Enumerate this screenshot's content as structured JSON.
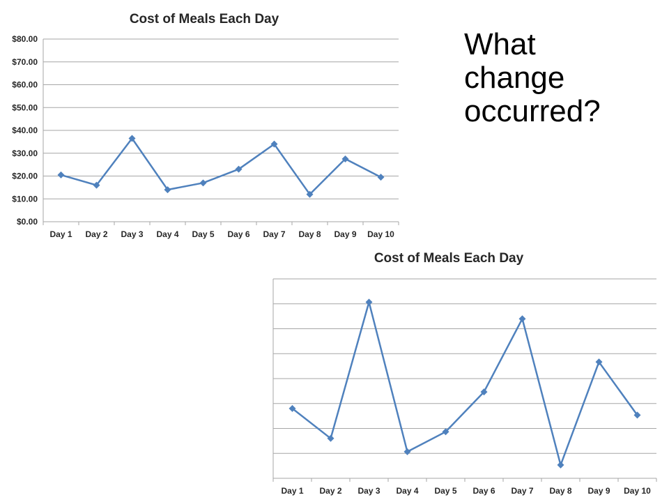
{
  "question": "What\nchange\noccurred?",
  "colors": {
    "series": "#4F81BD",
    "grid": "#A6A6A6",
    "text": "#262626"
  },
  "chart_data": [
    {
      "type": "line",
      "title": "Cost of Meals Each Day",
      "categories": [
        "Day 1",
        "Day 2",
        "Day 3",
        "Day 4",
        "Day 5",
        "Day 6",
        "Day 7",
        "Day 8",
        "Day 9",
        "Day 10"
      ],
      "series": [
        {
          "values": [
            20.5,
            16.0,
            36.5,
            14.0,
            17.0,
            23.0,
            34.0,
            12.0,
            27.5,
            19.5
          ]
        }
      ],
      "ylim": [
        0,
        80
      ],
      "yticks": [
        "$0.00",
        "$10.00",
        "$20.00",
        "$30.00",
        "$40.00",
        "$50.00",
        "$60.00",
        "$70.00",
        "$80.00"
      ],
      "grid": true,
      "legend": false
    },
    {
      "type": "line",
      "title": "Cost of Meals Each Day",
      "categories": [
        "Day 1",
        "Day 2",
        "Day 3",
        "Day 4",
        "Day 5",
        "Day 6",
        "Day 7",
        "Day 8",
        "Day 9",
        "Day 10"
      ],
      "series": [
        {
          "values": [
            20.5,
            16.0,
            36.5,
            14.0,
            17.0,
            23.0,
            34.0,
            12.0,
            27.5,
            19.5
          ]
        }
      ],
      "ylim": [
        10,
        40
      ],
      "yticks": [],
      "grid": true,
      "legend": false
    }
  ]
}
